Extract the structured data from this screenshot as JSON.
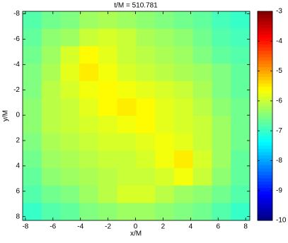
{
  "chart_data": {
    "type": "heatmap",
    "title": "t/M = 510.781",
    "x_label": "x/M",
    "y_label": "y/M",
    "xlim": [
      -8.2,
      8.3
    ],
    "ylim": [
      -8.2,
      8.3
    ],
    "y_reversed": true,
    "xticks": [
      -8,
      -6,
      -4,
      -2,
      0,
      2,
      4,
      6,
      8
    ],
    "yticks": [
      -8,
      -6,
      -4,
      -2,
      0,
      2,
      4,
      6,
      8
    ],
    "colormap": "jet",
    "clim": [
      -10,
      -3
    ],
    "cticks": [
      -10,
      -9,
      -8,
      -7,
      -6,
      -5,
      -4,
      -3
    ],
    "z": [
      [
        -6.8,
        -6.6,
        -6.5,
        -6.3,
        -6.2,
        -6.3,
        -6.4,
        -6.5,
        -6.6,
        -6.7,
        -6.9,
        -7.0
      ],
      [
        -6.7,
        -6.4,
        -6.3,
        -6.0,
        -5.9,
        -6.0,
        -6.2,
        -6.3,
        -6.4,
        -6.6,
        -6.8,
        -6.9
      ],
      [
        -6.6,
        -6.3,
        -5.9,
        -5.6,
        -5.8,
        -6.0,
        -6.1,
        -6.2,
        -6.3,
        -6.5,
        -6.7,
        -6.8
      ],
      [
        -6.5,
        -6.2,
        -5.8,
        -5.5,
        -5.7,
        -5.9,
        -6.0,
        -6.1,
        -6.2,
        -6.3,
        -6.5,
        -6.7
      ],
      [
        -6.5,
        -6.1,
        -5.9,
        -5.7,
        -5.6,
        -5.7,
        -5.8,
        -5.9,
        -6.0,
        -6.2,
        -6.5,
        -6.7
      ],
      [
        -6.4,
        -6.1,
        -6.0,
        -5.8,
        -5.6,
        -5.5,
        -5.6,
        -5.8,
        -5.9,
        -6.1,
        -6.4,
        -6.6
      ],
      [
        -6.4,
        -6.1,
        -6.0,
        -5.9,
        -5.8,
        -5.7,
        -5.6,
        -5.8,
        -5.9,
        -6.0,
        -6.3,
        -6.6
      ],
      [
        -6.5,
        -6.2,
        -6.1,
        -6.0,
        -5.9,
        -5.9,
        -5.8,
        -5.7,
        -5.8,
        -6.0,
        -6.3,
        -6.6
      ],
      [
        -6.6,
        -6.3,
        -6.2,
        -6.1,
        -6.0,
        -6.0,
        -5.9,
        -5.7,
        -5.5,
        -5.9,
        -6.3,
        -6.7
      ],
      [
        -6.7,
        -6.4,
        -6.3,
        -6.2,
        -6.1,
        -6.0,
        -6.0,
        -5.9,
        -5.7,
        -6.0,
        -6.4,
        -6.7
      ],
      [
        -6.8,
        -6.6,
        -6.5,
        -6.3,
        -6.1,
        -5.9,
        -5.9,
        -6.1,
        -6.3,
        -6.4,
        -6.6,
        -6.8
      ],
      [
        -7.0,
        -6.8,
        -6.7,
        -6.5,
        -6.4,
        -6.3,
        -6.3,
        -6.4,
        -6.5,
        -6.6,
        -6.8,
        -7.0
      ]
    ]
  }
}
